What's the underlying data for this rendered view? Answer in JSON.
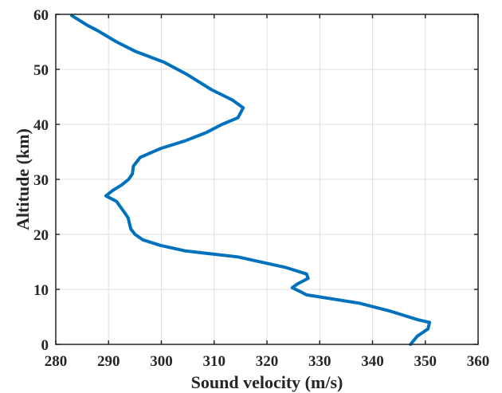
{
  "chart_data": {
    "type": "line",
    "xlabel": "Sound velocity (m/s)",
    "ylabel": "Altitude (km)",
    "xlim": [
      280,
      360
    ],
    "ylim": [
      0,
      60
    ],
    "xticks": [
      280,
      290,
      300,
      310,
      320,
      330,
      340,
      350,
      360
    ],
    "yticks": [
      0,
      10,
      20,
      30,
      40,
      50,
      60
    ],
    "grid": true,
    "box": true,
    "line_color": "#0072BD",
    "series": [
      {
        "x": [
          347.2,
          348.5,
          350.5,
          350.8,
          348.5,
          343.5,
          337.5,
          327.5,
          326.5,
          324.8,
          325.8,
          327.8,
          327.5,
          323.5,
          314.5,
          304.5,
          299.8,
          296.5,
          295.0,
          294.2,
          293.7,
          293.0,
          291.5,
          290.5,
          289.5,
          290.8,
          292.5,
          293.8,
          294.5,
          294.7,
          296.0,
          299.8,
          304.5,
          308.5,
          311.5,
          314.5,
          315.5,
          313.5,
          309.5,
          305.0,
          300.5,
          295.0,
          291.5,
          288.0,
          286.0,
          283.0
        ],
        "y": [
          0,
          1.5,
          2.8,
          4.0,
          4.5,
          6.0,
          7.5,
          9.0,
          9.5,
          10.3,
          11.0,
          12.0,
          12.8,
          14.0,
          15.9,
          17.0,
          18.0,
          19.0,
          20.0,
          21.0,
          23.0,
          24.0,
          26.0,
          26.5,
          27.0,
          28.0,
          29.0,
          30.0,
          31.0,
          32.4,
          34.0,
          35.6,
          37.0,
          38.5,
          40.0,
          41.2,
          43.0,
          44.4,
          46.3,
          49.0,
          51.3,
          53.3,
          55.0,
          57.0,
          58.0,
          59.8
        ]
      }
    ]
  }
}
